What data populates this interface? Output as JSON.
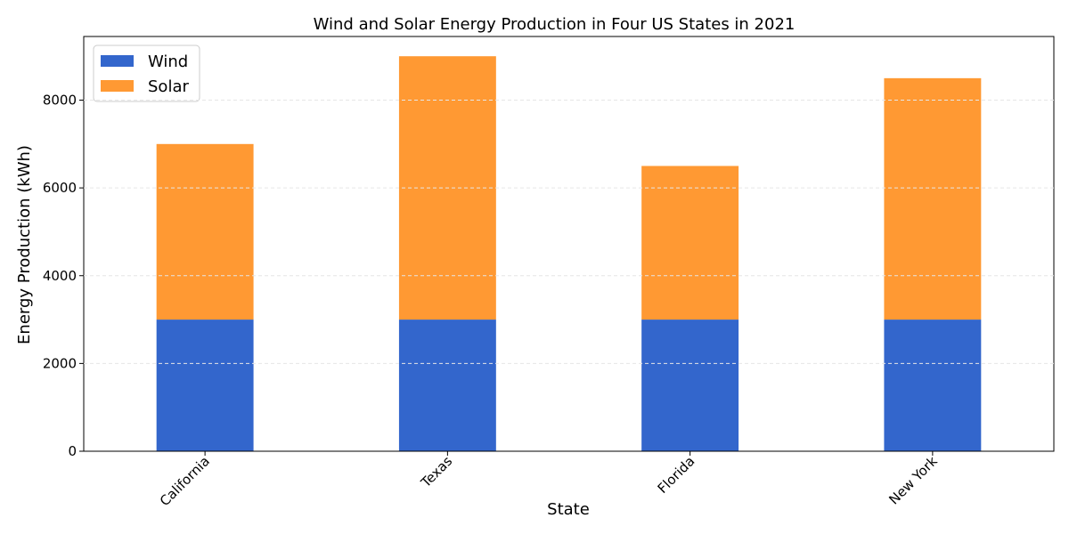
{
  "chart_data": {
    "type": "bar",
    "stacked": true,
    "title": "Wind and Solar Energy Production in Four US States in 2021",
    "xlabel": "State",
    "ylabel": "Energy Production (kWh)",
    "categories": [
      "California",
      "Texas",
      "Florida",
      "New York"
    ],
    "series": [
      {
        "name": "Wind",
        "color": "#3366cc",
        "values": [
          3000,
          3000,
          3000,
          3000
        ]
      },
      {
        "name": "Solar",
        "color": "#ff9933",
        "values": [
          4000,
          6000,
          3500,
          5500
        ]
      }
    ],
    "ylim": [
      0,
      9450
    ],
    "yticks": [
      0,
      2000,
      4000,
      6000,
      8000
    ],
    "grid": "y dashed",
    "legend_position": "top-left",
    "xtick_rotation": 45
  }
}
